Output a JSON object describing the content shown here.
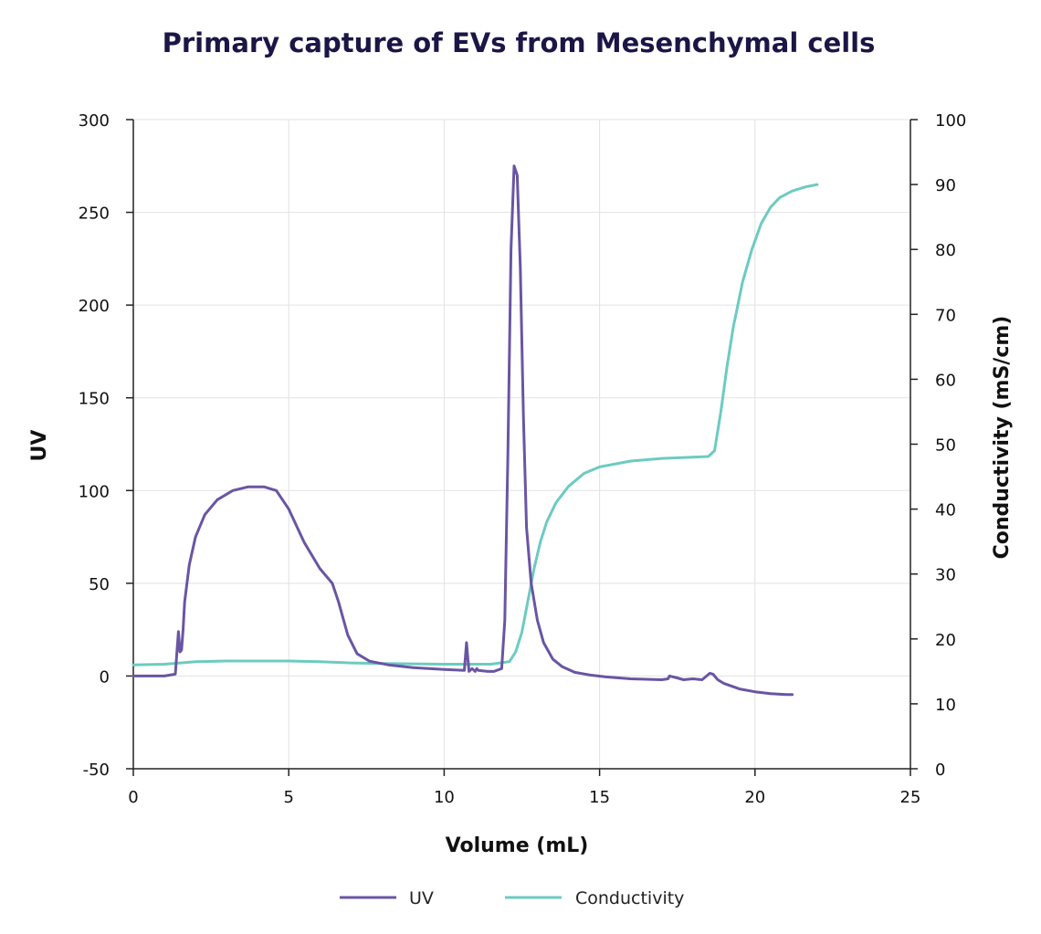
{
  "chart_data": {
    "type": "line",
    "title": "Primary capture of EVs from Mesenchymal cells",
    "xlabel": "Volume (mL)",
    "ylabel": "UV",
    "y2label": "Conductivity (mS/cm)",
    "xlim": [
      0,
      25
    ],
    "ylim": [
      -50,
      300
    ],
    "y2lim": [
      0,
      100
    ],
    "x_ticks": [
      "0",
      "5",
      "10",
      "15",
      "20",
      "25"
    ],
    "y_ticks": [
      "-50",
      "0",
      "50",
      "100",
      "150",
      "200",
      "250",
      "300"
    ],
    "y2_ticks": [
      "0",
      "10",
      "20",
      "30",
      "40",
      "50",
      "60",
      "70",
      "80",
      "90",
      "100"
    ],
    "grid": true,
    "legend_position": "bottom",
    "series": [
      {
        "name": "UV",
        "axis": "left",
        "color": "#6a55a3",
        "x": [
          0,
          1.0,
          1.35,
          1.45,
          1.5,
          1.55,
          1.6,
          1.65,
          1.8,
          2.0,
          2.3,
          2.7,
          3.2,
          3.7,
          4.2,
          4.6,
          5.0,
          5.5,
          6.0,
          6.4,
          6.6,
          6.9,
          7.2,
          7.6,
          8.2,
          9.0,
          10.0,
          10.65,
          10.72,
          10.75,
          10.8,
          10.9,
          11.0,
          11.05,
          11.1,
          11.4,
          11.6,
          11.85,
          11.95,
          12.05,
          12.15,
          12.25,
          12.35,
          12.45,
          12.55,
          12.65,
          12.8,
          13.0,
          13.2,
          13.5,
          13.8,
          14.2,
          14.7,
          15.2,
          16.0,
          17.0,
          17.2,
          17.25,
          17.5,
          17.7,
          18.0,
          18.3,
          18.55,
          18.65,
          18.8,
          19.0,
          19.5,
          20.0,
          20.5,
          21.0,
          21.2
        ],
        "values": [
          0,
          0,
          1,
          24,
          13,
          14,
          25,
          40,
          60,
          75,
          87,
          95,
          100,
          102,
          102,
          100,
          90,
          72,
          58,
          50,
          40,
          22,
          12,
          8,
          6,
          4.5,
          3.5,
          3,
          18,
          12,
          2.5,
          4,
          2.5,
          4,
          3,
          2.5,
          2.5,
          4,
          30,
          120,
          230,
          275,
          270,
          220,
          140,
          80,
          50,
          30,
          18,
          9,
          5,
          2,
          0.5,
          -0.5,
          -1.5,
          -2,
          -1.5,
          0,
          -1,
          -2,
          -1.5,
          -2,
          1.5,
          1,
          -2,
          -4,
          -7,
          -8.5,
          -9.5,
          -10,
          -10
        ]
      },
      {
        "name": "Conductivity",
        "axis": "right",
        "color": "#6ccbc1",
        "x": [
          0,
          1.0,
          1.5,
          2.0,
          3.0,
          5.0,
          6.0,
          7.0,
          8.0,
          10.0,
          11.5,
          12.1,
          12.3,
          12.5,
          12.7,
          12.9,
          13.1,
          13.3,
          13.6,
          14.0,
          14.5,
          15.0,
          16.0,
          17.0,
          18.0,
          18.5,
          18.7,
          18.9,
          19.1,
          19.3,
          19.6,
          19.9,
          20.2,
          20.5,
          20.8,
          21.2,
          21.6,
          22.0
        ],
        "values": [
          16.0,
          16.1,
          16.3,
          16.5,
          16.6,
          16.6,
          16.5,
          16.3,
          16.2,
          16.1,
          16.1,
          16.5,
          18,
          21,
          26,
          31,
          35,
          38,
          41,
          43.5,
          45.5,
          46.5,
          47.4,
          47.8,
          48.0,
          48.1,
          49,
          55,
          62,
          68,
          75,
          80,
          84,
          86.5,
          88,
          89,
          89.6,
          90.0
        ]
      }
    ]
  }
}
